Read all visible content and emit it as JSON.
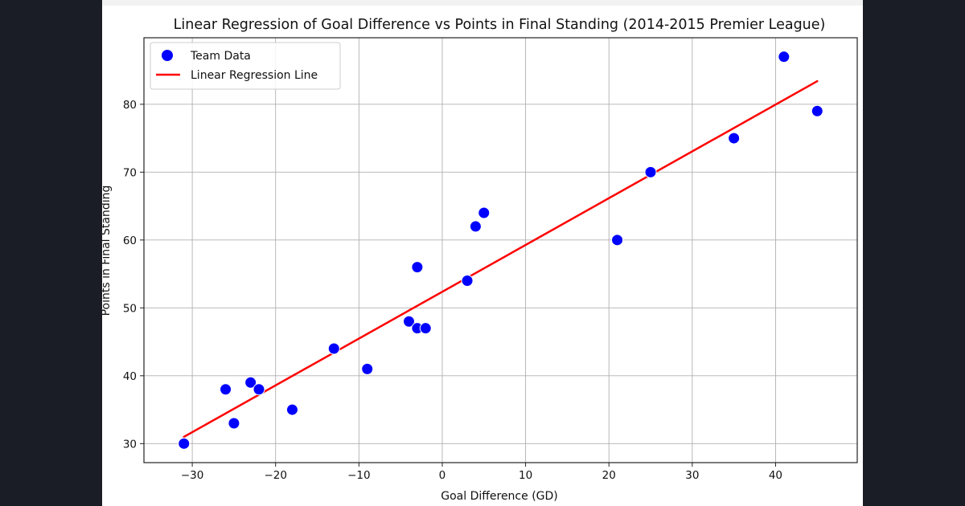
{
  "chart_data": {
    "type": "scatter",
    "title": "Linear Regression of Goal Difference vs Points in Final Standing (2014-2015 Premier League)",
    "xlabel": "Goal Difference (GD)",
    "ylabel": "Points in Final Standing",
    "xlim": [
      -35.8,
      49.8
    ],
    "ylim": [
      27.2,
      89.8
    ],
    "xticks": [
      -30,
      -20,
      -10,
      0,
      10,
      20,
      30,
      40
    ],
    "xtick_labels": [
      "−30",
      "−20",
      "−10",
      "0",
      "10",
      "20",
      "30",
      "40"
    ],
    "yticks": [
      30,
      40,
      50,
      60,
      70,
      80
    ],
    "ytick_labels": [
      "30",
      "40",
      "50",
      "60",
      "70",
      "80"
    ],
    "grid": true,
    "legend_position": "top-left",
    "series": [
      {
        "name": "Team Data",
        "kind": "scatter",
        "color": "#0000ff",
        "points": [
          {
            "x": -31,
            "y": 30
          },
          {
            "x": -26,
            "y": 38
          },
          {
            "x": -25,
            "y": 33
          },
          {
            "x": -23,
            "y": 39
          },
          {
            "x": -22,
            "y": 38
          },
          {
            "x": -18,
            "y": 35
          },
          {
            "x": -13,
            "y": 44
          },
          {
            "x": -9,
            "y": 41
          },
          {
            "x": -4,
            "y": 48
          },
          {
            "x": -3,
            "y": 47
          },
          {
            "x": -3,
            "y": 56
          },
          {
            "x": -2,
            "y": 47
          },
          {
            "x": 3,
            "y": 54
          },
          {
            "x": 4,
            "y": 62
          },
          {
            "x": 5,
            "y": 64
          },
          {
            "x": 21,
            "y": 60
          },
          {
            "x": 25,
            "y": 70
          },
          {
            "x": 35,
            "y": 75
          },
          {
            "x": 41,
            "y": 87
          },
          {
            "x": 45,
            "y": 79
          }
        ]
      },
      {
        "name": "Linear Regression Line",
        "kind": "line",
        "color": "#ff0000",
        "points": [
          {
            "x": -31,
            "y": 31.0
          },
          {
            "x": 45,
            "y": 83.4
          }
        ]
      }
    ]
  }
}
